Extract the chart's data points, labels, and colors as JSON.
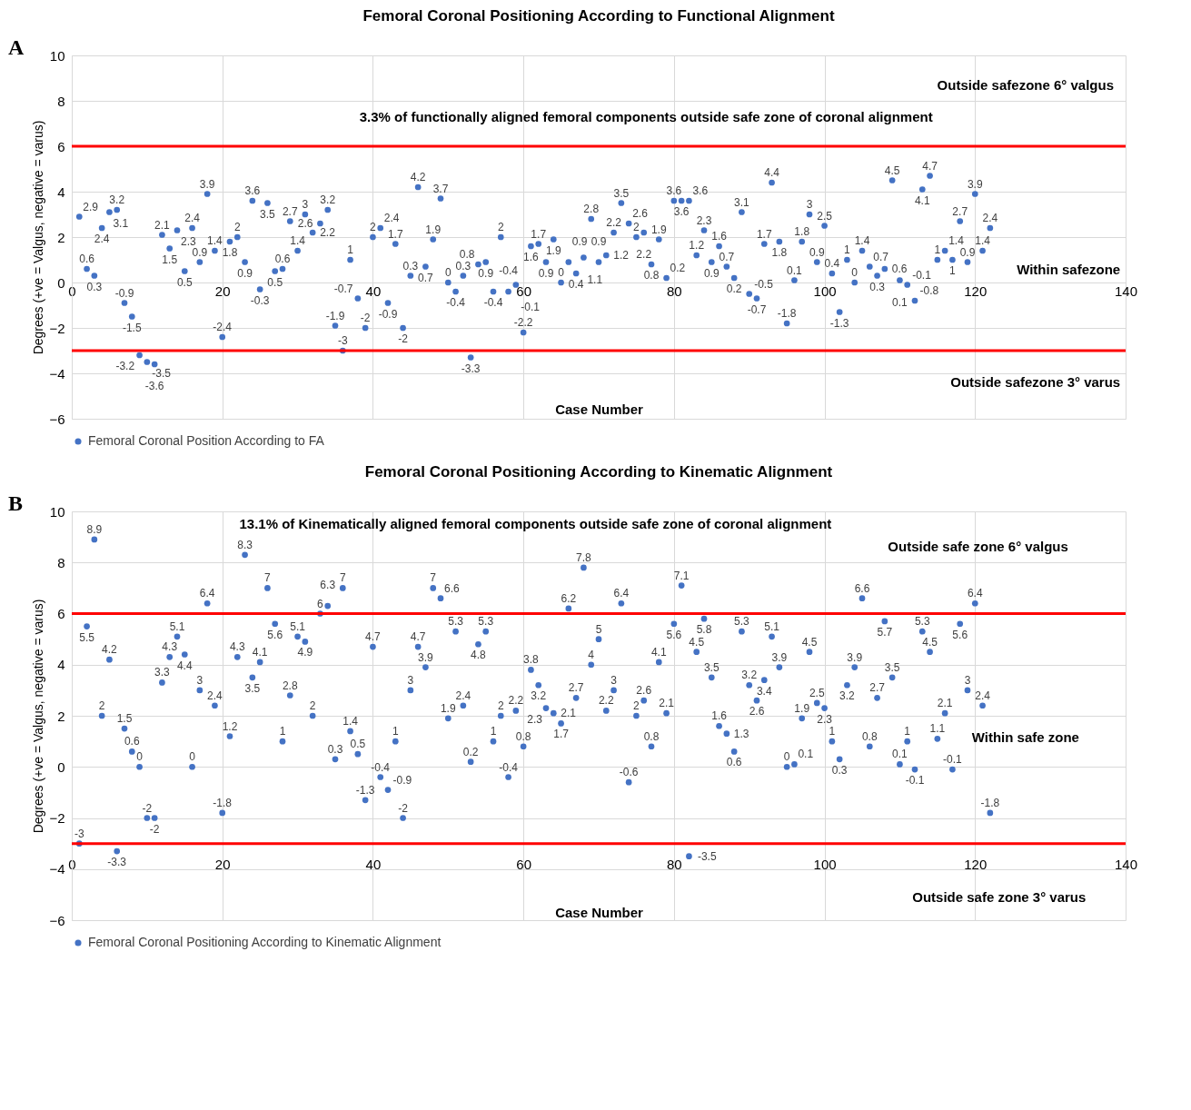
{
  "chart_data": [
    {
      "type": "scatter",
      "title": "Femoral Coronal Positioning According to Functional Alignment",
      "xlabel": "Case Number",
      "ylabel": "Degrees (+ve = Valgus, negative = varus)",
      "x": [
        1,
        2,
        3,
        4,
        5,
        6,
        7,
        8,
        9,
        10,
        11,
        12,
        13,
        14,
        15,
        16,
        17,
        18,
        19,
        20,
        21,
        22,
        23,
        24,
        25,
        26,
        27,
        28,
        29,
        30,
        31,
        32,
        33,
        34,
        35,
        36,
        37,
        38,
        39,
        40,
        41,
        42,
        43,
        44,
        45,
        46,
        47,
        48,
        49,
        50,
        51,
        52,
        53,
        54,
        55,
        56,
        57,
        58,
        59,
        60,
        61,
        62,
        63,
        64,
        65,
        66,
        67,
        68,
        69,
        70,
        71,
        72,
        73,
        74,
        75,
        76,
        77,
        78,
        79,
        80,
        81,
        82,
        83,
        84,
        85,
        86,
        87,
        88,
        89,
        90,
        91,
        92,
        93,
        94,
        95,
        96,
        97,
        98,
        99,
        100,
        101,
        102,
        103,
        104,
        105,
        106,
        107,
        108,
        109,
        110,
        111,
        112,
        113,
        114,
        115,
        116,
        117,
        118,
        119,
        120,
        121,
        122
      ],
      "series": [
        {
          "name": "Femoral Coronal Position According to FA",
          "color": "#4472c4",
          "values": [
            2.9,
            0.6,
            0.3,
            2.4,
            3.1,
            3.2,
            -0.9,
            -1.5,
            -3.2,
            -3.5,
            -3.6,
            2.1,
            1.5,
            2.3,
            0.5,
            2.4,
            0.9,
            3.9,
            1.4,
            -2.4,
            1.8,
            2,
            0.9,
            3.6,
            -0.3,
            3.5,
            0.5,
            0.6,
            2.7,
            1.4,
            3,
            2.2,
            2.6,
            3.2,
            -1.9,
            -3,
            1,
            -0.7,
            -2,
            2,
            2.4,
            -0.9,
            1.7,
            -2,
            0.3,
            4.2,
            0.7,
            1.9,
            3.7,
            0,
            -0.4,
            0.3,
            -3.3,
            0.8,
            0.9,
            -0.4,
            2,
            -0.4,
            -0.1,
            -2.2,
            1.6,
            1.7,
            0.9,
            1.9,
            0,
            0.9,
            0.4,
            1.1,
            2.8,
            0.9,
            1.2,
            2.2,
            3.5,
            2.6,
            2,
            2.2,
            0.8,
            1.9,
            0.2,
            3.6,
            3.6,
            3.6,
            1.2,
            2.3,
            0.9,
            1.6,
            0.7,
            0.2,
            3.1,
            -0.5,
            -0.7,
            1.7,
            4.4,
            1.8,
            -1.8,
            0.1,
            1.8,
            3,
            0.9,
            2.5,
            0.4,
            -1.3,
            1,
            0,
            1.4,
            0.7,
            0.3,
            0.6,
            4.5,
            0.1,
            -0.1,
            -0.8,
            4.1,
            4.7,
            1,
            1.4,
            1,
            2.7,
            0.9,
            3.9,
            1.4,
            2.4
          ]
        }
      ],
      "xlim": [
        0,
        140
      ],
      "xticks": [
        0,
        20,
        40,
        60,
        80,
        100,
        120,
        140
      ],
      "ylim": [
        -6,
        10
      ],
      "yticks": [
        -6,
        -4,
        -2,
        0,
        2,
        4,
        6,
        8,
        10
      ],
      "grid": true,
      "legend": "bottom",
      "marker": "circle",
      "data_labels": true,
      "ref_lines": [
        {
          "axis": "y",
          "value": 6,
          "color": "#ff0000"
        },
        {
          "axis": "y",
          "value": -3,
          "color": "#ff0000"
        }
      ],
      "annotations": [
        "A",
        "Outside safezone 6° valgus",
        "3.3% of functionally aligned femoral components outside safe zone of coronal alignment",
        "Within safezone",
        "Outside safezone 3° varus"
      ]
    },
    {
      "type": "scatter",
      "title": "Femoral Coronal Positioning According to Kinematic Alignment",
      "xlabel": "Case Number",
      "ylabel": "Degrees (+ve = Valgus, negative = varus)",
      "x": [
        1,
        2,
        3,
        4,
        5,
        6,
        7,
        8,
        9,
        10,
        11,
        12,
        13,
        14,
        15,
        16,
        17,
        18,
        19,
        20,
        21,
        22,
        23,
        24,
        25,
        26,
        27,
        28,
        29,
        30,
        31,
        32,
        33,
        34,
        35,
        36,
        37,
        38,
        39,
        40,
        41,
        42,
        43,
        44,
        45,
        46,
        47,
        48,
        49,
        50,
        51,
        52,
        53,
        54,
        55,
        56,
        57,
        58,
        59,
        60,
        61,
        62,
        63,
        64,
        65,
        66,
        67,
        68,
        69,
        70,
        71,
        72,
        73,
        74,
        75,
        76,
        77,
        78,
        79,
        80,
        81,
        82,
        83,
        84,
        85,
        86,
        87,
        88,
        89,
        90,
        91,
        92,
        93,
        94,
        95,
        96,
        97,
        98,
        99,
        100,
        101,
        102,
        103,
        104,
        105,
        106,
        107,
        108,
        109,
        110,
        111,
        112,
        113,
        114,
        115,
        116,
        117,
        118,
        119,
        120,
        121,
        122
      ],
      "series": [
        {
          "name": "Femoral Coronal Positioning According to Kinematic Alignment",
          "color": "#4472c4",
          "values": [
            -3,
            5.5,
            8.9,
            2,
            4.2,
            -3.3,
            1.5,
            0.6,
            0,
            -2,
            -2,
            3.3,
            4.3,
            5.1,
            4.4,
            0,
            3,
            6.4,
            2.4,
            -1.8,
            1.2,
            4.3,
            8.3,
            3.5,
            4.1,
            7,
            5.6,
            1,
            2.8,
            5.1,
            4.9,
            2,
            6,
            6.3,
            0.3,
            7,
            1.4,
            0.5,
            -1.3,
            4.7,
            -0.4,
            -0.9,
            1,
            -2,
            3,
            4.7,
            3.9,
            7,
            6.6,
            1.9,
            5.3,
            2.4,
            0.2,
            4.8,
            5.3,
            1,
            2,
            -0.4,
            2.2,
            0.8,
            3.8,
            3.2,
            2.3,
            2.1,
            1.7,
            6.2,
            2.7,
            7.8,
            4,
            5,
            2.2,
            3,
            6.4,
            -0.6,
            2,
            2.6,
            0.8,
            4.1,
            2.1,
            5.6,
            7.1,
            -3.5,
            4.5,
            5.8,
            3.5,
            1.6,
            1.3,
            0.6,
            5.3,
            3.2,
            2.6,
            3.4,
            5.1,
            3.9,
            0,
            0.1,
            1.9,
            4.5,
            2.5,
            2.3,
            1,
            0.3,
            3.2,
            3.9,
            6.6,
            0.8,
            2.7,
            5.7,
            3.5,
            0.1,
            1,
            -0.1,
            5.3,
            4.5,
            1.1,
            2.1,
            -0.1,
            5.6,
            3,
            6.4,
            2.4,
            -1.8
          ]
        }
      ],
      "xlim": [
        0,
        140
      ],
      "xticks": [
        0,
        20,
        40,
        60,
        80,
        100,
        120,
        140
      ],
      "ylim": [
        -6,
        10
      ],
      "yticks": [
        -6,
        -4,
        -2,
        0,
        2,
        4,
        6,
        8,
        10
      ],
      "grid": true,
      "legend": "bottom",
      "marker": "circle",
      "data_labels": true,
      "ref_lines": [
        {
          "axis": "y",
          "value": 6,
          "color": "#ff0000"
        },
        {
          "axis": "y",
          "value": -3,
          "color": "#ff0000"
        }
      ],
      "annotations": [
        "B",
        "13.1% of Kinematically aligned femoral components outside safe zone of coronal alignment",
        "Outside safe zone 6° valgus",
        "Within safe zone",
        "Outside safe zone 3° varus"
      ]
    }
  ]
}
